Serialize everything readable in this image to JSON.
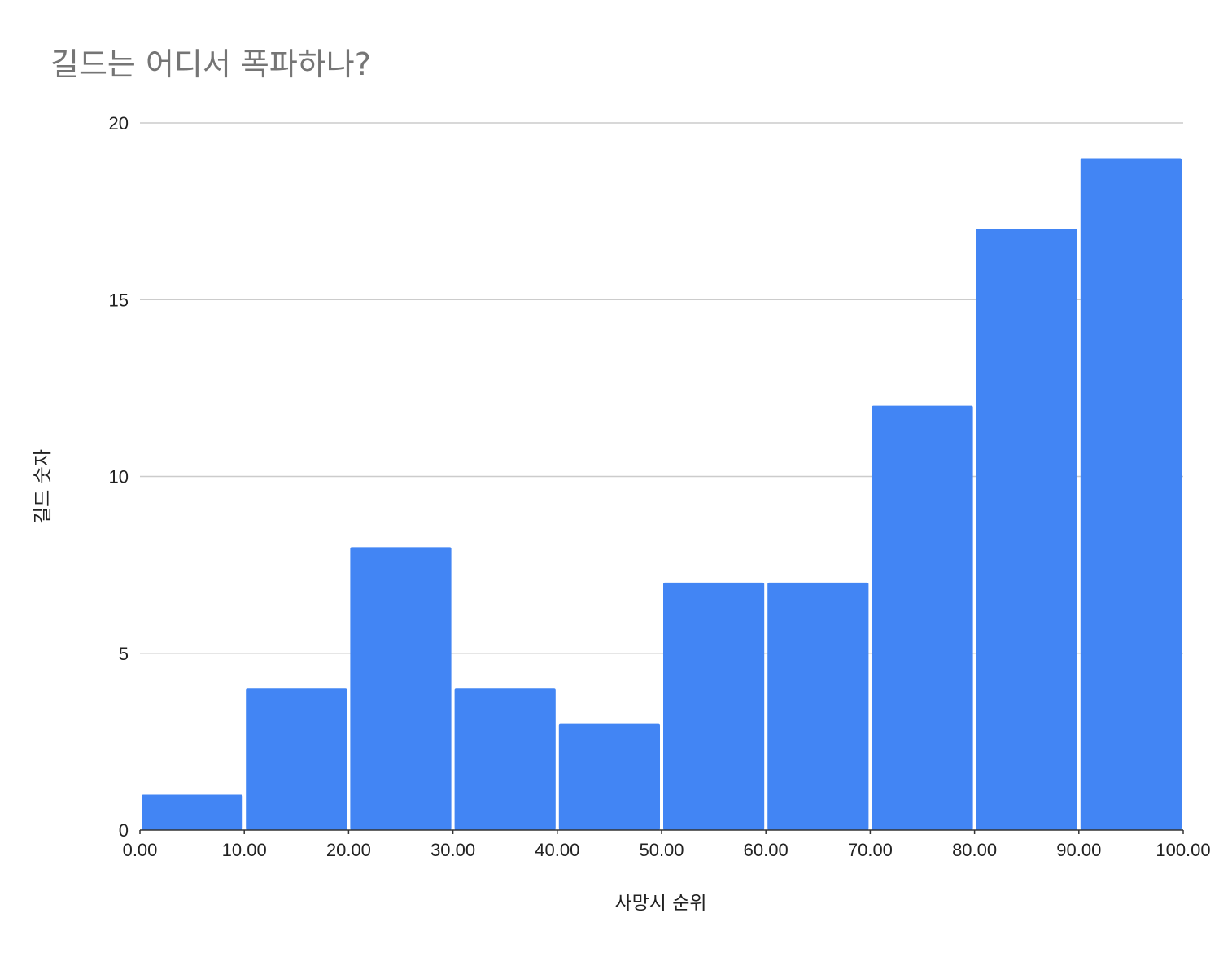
{
  "chart_data": {
    "type": "bar",
    "title": "길드는 어디서 폭파하나?",
    "xlabel": "사망시 순위",
    "ylabel": "길드 숫자",
    "x_ticks": [
      "0.00",
      "10.00",
      "20.00",
      "30.00",
      "40.00",
      "50.00",
      "60.00",
      "70.00",
      "80.00",
      "90.00",
      "100.00"
    ],
    "y_ticks": [
      "0",
      "5",
      "10",
      "15",
      "20"
    ],
    "bins": [
      {
        "start": 0,
        "end": 10,
        "value": 1
      },
      {
        "start": 10,
        "end": 20,
        "value": 4
      },
      {
        "start": 20,
        "end": 30,
        "value": 8
      },
      {
        "start": 30,
        "end": 40,
        "value": 4
      },
      {
        "start": 40,
        "end": 50,
        "value": 3
      },
      {
        "start": 50,
        "end": 60,
        "value": 7
      },
      {
        "start": 60,
        "end": 70,
        "value": 7
      },
      {
        "start": 70,
        "end": 80,
        "value": 12
      },
      {
        "start": 80,
        "end": 90,
        "value": 17
      },
      {
        "start": 90,
        "end": 100,
        "value": 19
      }
    ],
    "xlim": [
      0,
      100
    ],
    "ylim": [
      0,
      20
    ],
    "grid": true,
    "bar_color": "#4285f4"
  }
}
